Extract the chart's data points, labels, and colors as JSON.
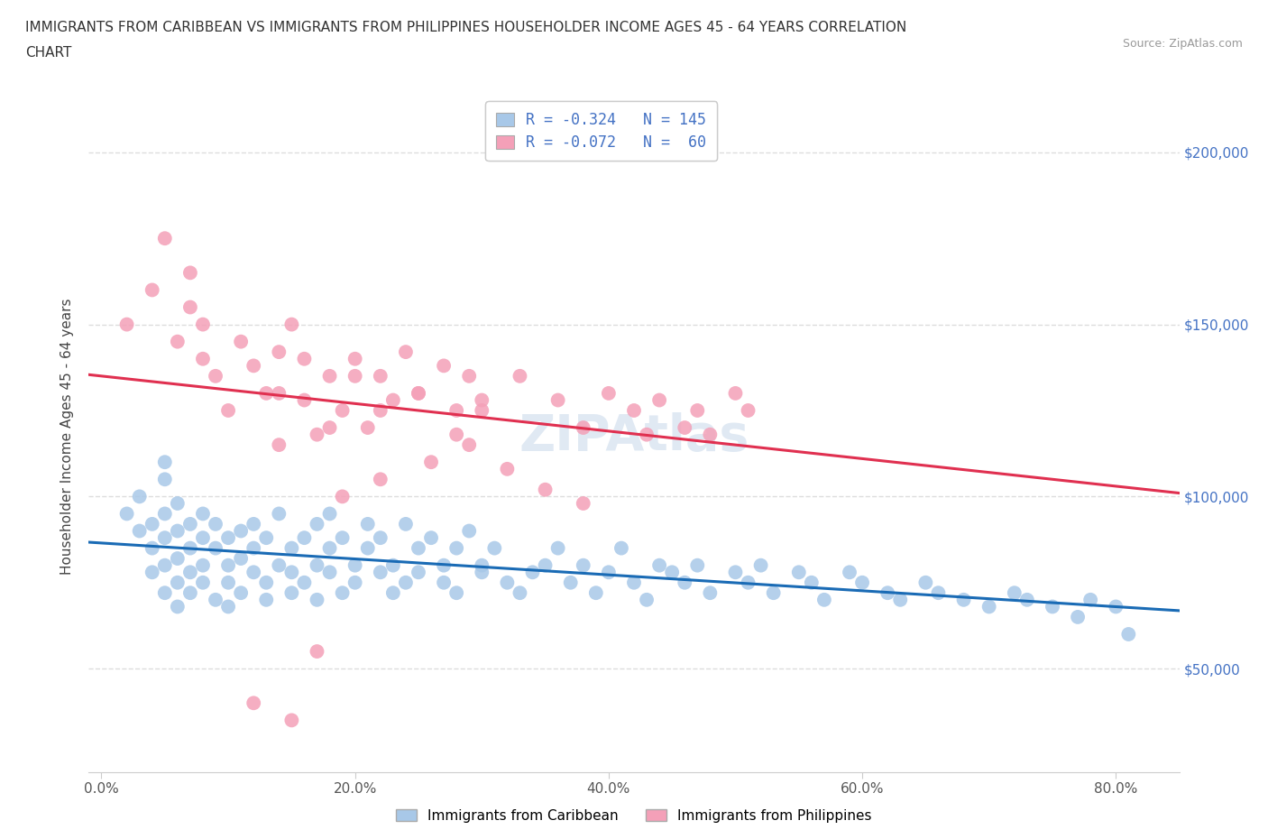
{
  "title_line1": "IMMIGRANTS FROM CARIBBEAN VS IMMIGRANTS FROM PHILIPPINES HOUSEHOLDER INCOME AGES 45 - 64 YEARS CORRELATION",
  "title_line2": "CHART",
  "source": "Source: ZipAtlas.com",
  "ylabel_label": "Householder Income Ages 45 - 64 years",
  "xlim": [
    -0.01,
    0.85
  ],
  "ylim": [
    20000,
    215000
  ],
  "legend_label1": "Immigrants from Caribbean",
  "legend_label2": "Immigrants from Philippines",
  "caribbean_color": "#a8c8e8",
  "philippines_color": "#f4a0b8",
  "trend_caribbean_color": "#1a6bb5",
  "trend_philippines_color": "#e03050",
  "grid_color": "#dddddd",
  "caribbean_x": [
    0.02,
    0.03,
    0.03,
    0.04,
    0.04,
    0.04,
    0.05,
    0.05,
    0.05,
    0.05,
    0.05,
    0.05,
    0.06,
    0.06,
    0.06,
    0.06,
    0.06,
    0.07,
    0.07,
    0.07,
    0.07,
    0.08,
    0.08,
    0.08,
    0.08,
    0.09,
    0.09,
    0.09,
    0.1,
    0.1,
    0.1,
    0.1,
    0.11,
    0.11,
    0.11,
    0.12,
    0.12,
    0.12,
    0.13,
    0.13,
    0.13,
    0.14,
    0.14,
    0.15,
    0.15,
    0.15,
    0.16,
    0.16,
    0.17,
    0.17,
    0.17,
    0.18,
    0.18,
    0.18,
    0.19,
    0.19,
    0.2,
    0.2,
    0.21,
    0.21,
    0.22,
    0.22,
    0.23,
    0.23,
    0.24,
    0.24,
    0.25,
    0.25,
    0.26,
    0.27,
    0.27,
    0.28,
    0.28,
    0.29,
    0.3,
    0.3,
    0.31,
    0.32,
    0.33,
    0.34,
    0.35,
    0.36,
    0.37,
    0.38,
    0.39,
    0.4,
    0.41,
    0.42,
    0.43,
    0.44,
    0.45,
    0.46,
    0.47,
    0.48,
    0.5,
    0.51,
    0.52,
    0.53,
    0.55,
    0.56,
    0.57,
    0.59,
    0.6,
    0.62,
    0.63,
    0.65,
    0.66,
    0.68,
    0.7,
    0.72,
    0.73,
    0.75,
    0.77,
    0.78,
    0.8,
    0.81
  ],
  "caribbean_y": [
    95000,
    90000,
    100000,
    85000,
    92000,
    78000,
    80000,
    88000,
    95000,
    72000,
    105000,
    110000,
    75000,
    82000,
    90000,
    68000,
    98000,
    72000,
    85000,
    92000,
    78000,
    80000,
    88000,
    75000,
    95000,
    70000,
    85000,
    92000,
    80000,
    75000,
    88000,
    68000,
    82000,
    90000,
    72000,
    78000,
    85000,
    92000,
    75000,
    88000,
    70000,
    80000,
    95000,
    72000,
    85000,
    78000,
    88000,
    75000,
    80000,
    92000,
    70000,
    85000,
    78000,
    95000,
    72000,
    88000,
    80000,
    75000,
    85000,
    92000,
    78000,
    88000,
    72000,
    80000,
    75000,
    92000,
    85000,
    78000,
    88000,
    80000,
    75000,
    85000,
    72000,
    90000,
    78000,
    80000,
    85000,
    75000,
    72000,
    78000,
    80000,
    85000,
    75000,
    80000,
    72000,
    78000,
    85000,
    75000,
    70000,
    80000,
    78000,
    75000,
    80000,
    72000,
    78000,
    75000,
    80000,
    72000,
    78000,
    75000,
    70000,
    78000,
    75000,
    72000,
    70000,
    75000,
    72000,
    70000,
    68000,
    72000,
    70000,
    68000,
    65000,
    70000,
    68000,
    60000
  ],
  "philippines_x": [
    0.02,
    0.04,
    0.05,
    0.06,
    0.07,
    0.07,
    0.08,
    0.08,
    0.09,
    0.1,
    0.11,
    0.12,
    0.13,
    0.14,
    0.14,
    0.15,
    0.16,
    0.17,
    0.18,
    0.19,
    0.2,
    0.21,
    0.22,
    0.23,
    0.24,
    0.25,
    0.27,
    0.28,
    0.29,
    0.3,
    0.14,
    0.16,
    0.18,
    0.2,
    0.22,
    0.25,
    0.28,
    0.3,
    0.33,
    0.36,
    0.38,
    0.4,
    0.42,
    0.43,
    0.44,
    0.46,
    0.47,
    0.48,
    0.5,
    0.51,
    0.12,
    0.15,
    0.17,
    0.19,
    0.22,
    0.26,
    0.29,
    0.32,
    0.35,
    0.38
  ],
  "philippines_y": [
    150000,
    160000,
    175000,
    145000,
    155000,
    165000,
    140000,
    150000,
    135000,
    125000,
    145000,
    138000,
    130000,
    142000,
    115000,
    150000,
    128000,
    118000,
    135000,
    125000,
    140000,
    120000,
    135000,
    128000,
    142000,
    130000,
    138000,
    125000,
    135000,
    128000,
    130000,
    140000,
    120000,
    135000,
    125000,
    130000,
    118000,
    125000,
    135000,
    128000,
    120000,
    130000,
    125000,
    118000,
    128000,
    120000,
    125000,
    118000,
    130000,
    125000,
    40000,
    35000,
    55000,
    100000,
    105000,
    110000,
    115000,
    108000,
    102000,
    98000
  ]
}
